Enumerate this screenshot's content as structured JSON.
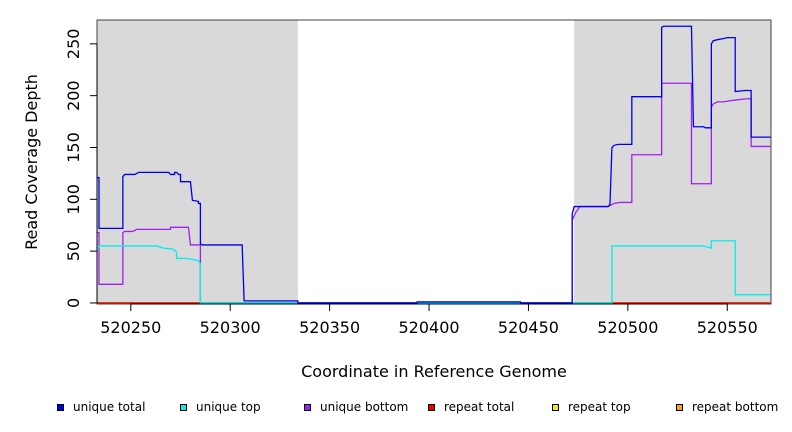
{
  "chart_data": {
    "type": "line",
    "title": "",
    "xlabel": "Coordinate in Reference Genome",
    "ylabel": "Read Coverage Depth",
    "xlim": [
      520233,
      520572
    ],
    "ylim": [
      -1,
      273
    ],
    "x_ticks": [
      520250,
      520300,
      520350,
      520400,
      520450,
      520500,
      520550
    ],
    "y_ticks": [
      0,
      50,
      100,
      150,
      200,
      250
    ],
    "shaded_ranges": [
      [
        520233,
        520334
      ],
      [
        520473,
        520572
      ]
    ],
    "shade_color": "#d9d9d9",
    "legend_position": "bottom",
    "series": [
      {
        "name": "unique total",
        "color": "#0000ee",
        "points": [
          [
            520233,
            121
          ],
          [
            520234,
            121
          ],
          [
            520234,
            72
          ],
          [
            520246,
            72
          ],
          [
            520246,
            122
          ],
          [
            520247,
            124
          ],
          [
            520252,
            124
          ],
          [
            520254,
            126
          ],
          [
            520269,
            126
          ],
          [
            520270,
            124
          ],
          [
            520272,
            124
          ],
          [
            520272,
            126
          ],
          [
            520273,
            126
          ],
          [
            520274,
            124
          ],
          [
            520275,
            124
          ],
          [
            520275,
            117
          ],
          [
            520280,
            117
          ],
          [
            520281,
            99
          ],
          [
            520284,
            98
          ],
          [
            520284,
            96
          ],
          [
            520285,
            96
          ],
          [
            520285,
            57
          ],
          [
            520286,
            56
          ],
          [
            520306,
            56
          ],
          [
            520307,
            2
          ],
          [
            520334,
            2
          ],
          [
            520334,
            0
          ],
          [
            520394,
            0
          ],
          [
            520394,
            1
          ],
          [
            520446,
            1
          ],
          [
            520446,
            0
          ],
          [
            520472,
            0
          ],
          [
            520472,
            86
          ],
          [
            520473,
            93
          ],
          [
            520490,
            93
          ],
          [
            520491,
            95
          ],
          [
            520492,
            150
          ],
          [
            520493,
            152
          ],
          [
            520495,
            153
          ],
          [
            520502,
            153
          ],
          [
            520502,
            199
          ],
          [
            520517,
            199
          ],
          [
            520517,
            266
          ],
          [
            520518,
            267
          ],
          [
            520532,
            267
          ],
          [
            520533,
            170
          ],
          [
            520538,
            170
          ],
          [
            520539,
            169
          ],
          [
            520542,
            169
          ],
          [
            520542,
            250
          ],
          [
            520543,
            253
          ],
          [
            520545,
            254
          ],
          [
            520548,
            255
          ],
          [
            520550,
            256
          ],
          [
            520554,
            256
          ],
          [
            520554,
            204
          ],
          [
            520559,
            205
          ],
          [
            520562,
            205
          ],
          [
            520562,
            160
          ],
          [
            520572,
            160
          ]
        ]
      },
      {
        "name": "unique top",
        "color": "#00eeee",
        "points": [
          [
            520233,
            53
          ],
          [
            520234,
            53
          ],
          [
            520234,
            55
          ],
          [
            520263,
            55
          ],
          [
            520266,
            53
          ],
          [
            520271,
            52
          ],
          [
            520272,
            51
          ],
          [
            520273,
            49
          ],
          [
            520273,
            43
          ],
          [
            520278,
            43
          ],
          [
            520281,
            42
          ],
          [
            520284,
            41
          ],
          [
            520284,
            40
          ],
          [
            520285,
            38
          ],
          [
            520285,
            0
          ],
          [
            520492,
            0
          ],
          [
            520492,
            55
          ],
          [
            520538,
            55
          ],
          [
            520540,
            54
          ],
          [
            520542,
            53
          ],
          [
            520542,
            60
          ],
          [
            520554,
            60
          ],
          [
            520554,
            8
          ],
          [
            520572,
            8
          ]
        ]
      },
      {
        "name": "unique bottom",
        "color": "#a020f0",
        "points": [
          [
            520233,
            68
          ],
          [
            520234,
            68
          ],
          [
            520234,
            18
          ],
          [
            520246,
            18
          ],
          [
            520246,
            68
          ],
          [
            520247,
            69
          ],
          [
            520251,
            69
          ],
          [
            520253,
            71
          ],
          [
            520270,
            71
          ],
          [
            520270,
            73
          ],
          [
            520279,
            73
          ],
          [
            520280,
            56
          ],
          [
            520285,
            56
          ],
          [
            520285,
            0
          ],
          [
            520472,
            0
          ],
          [
            520472,
            80
          ],
          [
            520474,
            88
          ],
          [
            520476,
            93
          ],
          [
            520490,
            93
          ],
          [
            520491,
            94
          ],
          [
            520493,
            96
          ],
          [
            520496,
            97
          ],
          [
            520502,
            97
          ],
          [
            520502,
            143
          ],
          [
            520517,
            143
          ],
          [
            520517,
            212
          ],
          [
            520532,
            212
          ],
          [
            520532,
            115
          ],
          [
            520542,
            115
          ],
          [
            520542,
            189
          ],
          [
            520543,
            192
          ],
          [
            520545,
            194
          ],
          [
            520548,
            194
          ],
          [
            520551,
            195
          ],
          [
            520555,
            196
          ],
          [
            520560,
            197
          ],
          [
            520562,
            197
          ],
          [
            520562,
            151
          ],
          [
            520572,
            151
          ]
        ]
      },
      {
        "name": "repeat total",
        "color": "#ee0000",
        "points": [
          [
            520233,
            0
          ],
          [
            520572,
            0
          ]
        ]
      },
      {
        "name": "repeat top",
        "color": "#eeee00",
        "points": [
          [
            520233,
            0
          ],
          [
            520572,
            0
          ]
        ]
      },
      {
        "name": "repeat bottom",
        "color": "#ffa500",
        "points": [
          [
            520233,
            0
          ],
          [
            520572,
            0
          ]
        ]
      }
    ]
  }
}
